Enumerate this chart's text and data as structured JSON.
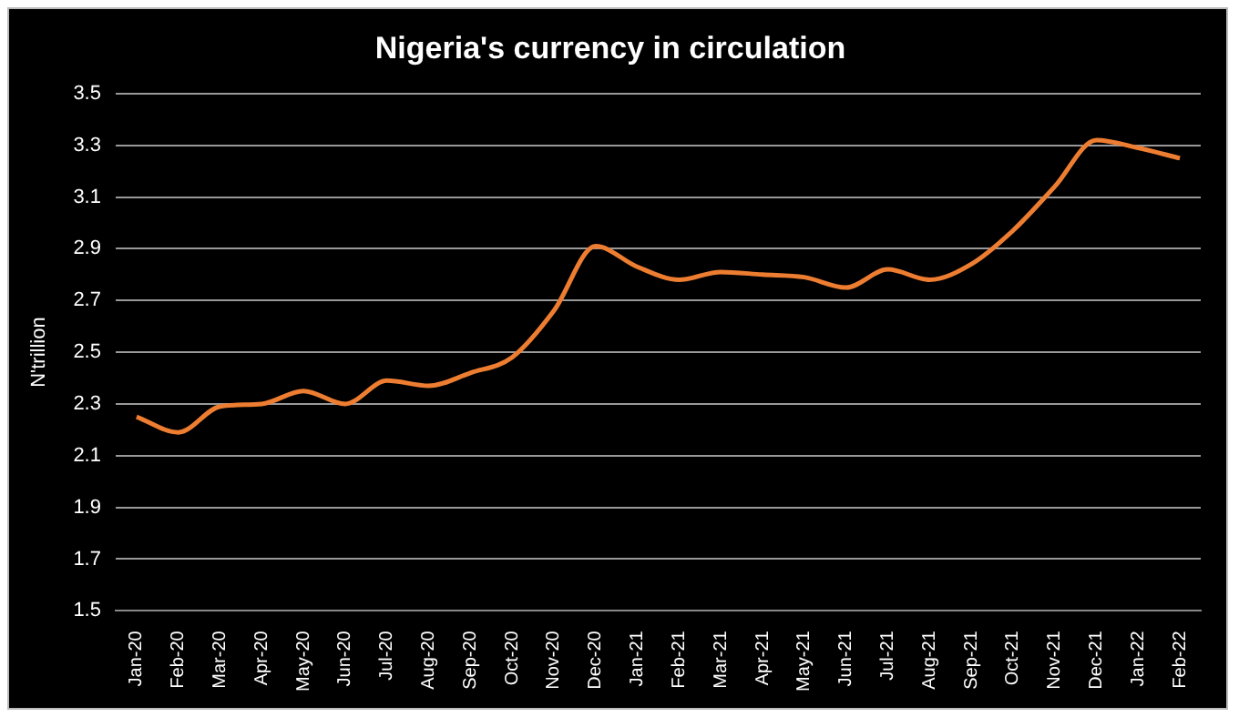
{
  "chart_data": {
    "type": "line",
    "title": "Nigeria's currency in circulation",
    "ylabel": "N'trillion",
    "categories": [
      "Jan-20",
      "Feb-20",
      "Mar-20",
      "Apr-20",
      "May-20",
      "Jun-20",
      "Jul-20",
      "Aug-20",
      "Sep-20",
      "Oct-20",
      "Nov-20",
      "Dec-20",
      "Jan-21",
      "Feb-21",
      "Mar-21",
      "Apr-21",
      "May-21",
      "Jun-21",
      "Jul-21",
      "Aug-21",
      "Sep-21",
      "Oct-21",
      "Nov-21",
      "Dec-21",
      "Jan-22",
      "Feb-22"
    ],
    "series": [
      {
        "color": "#ed7d31",
        "values": [
          2.25,
          2.19,
          2.29,
          2.3,
          2.35,
          2.3,
          2.39,
          2.37,
          2.42,
          2.48,
          2.66,
          2.91,
          2.83,
          2.78,
          2.81,
          2.8,
          2.79,
          2.75,
          2.82,
          2.78,
          2.84,
          2.97,
          3.14,
          3.32,
          3.29,
          3.25
        ]
      }
    ],
    "ylim": [
      1.5,
      3.5
    ],
    "yticks": [
      1.5,
      1.7,
      1.9,
      2.1,
      2.3,
      2.5,
      2.7,
      2.9,
      3.1,
      3.3,
      3.5
    ],
    "grid": "y",
    "legend": false,
    "marker": "none",
    "line_style": "solid"
  }
}
